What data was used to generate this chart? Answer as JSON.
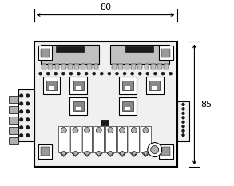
{
  "bg_color": "#ffffff",
  "line_color": "#000000",
  "fig_width": 2.93,
  "fig_height": 2.33,
  "dpi": 100,
  "dim_width_label": "80",
  "dim_height_label": "85",
  "board_fill": "#f0f0f0",
  "gray_fill": "#c0c0c0",
  "dark_fill": "#1a1a1a",
  "white_fill": "#ffffff",
  "connector_gray": "#b0b0b0"
}
